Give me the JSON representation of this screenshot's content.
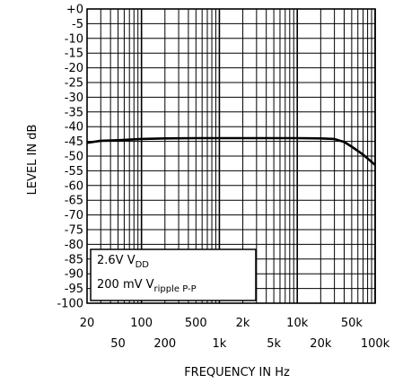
{
  "chart_data": {
    "type": "line",
    "xlabel": "FREQUENCY IN Hz",
    "ylabel": "LEVEL IN dB",
    "xscale": "log",
    "xlim": [
      20,
      100000
    ],
    "ylim": [
      -100,
      0
    ],
    "grid": true,
    "x_ticks_row1": [
      "20",
      "100",
      "500",
      "2k",
      "10k",
      "50k"
    ],
    "x_ticks_row2": [
      "50",
      "200",
      "1k",
      "5k",
      "20k",
      "100k"
    ],
    "y_ticks": [
      "+0",
      "-5",
      "-10",
      "-15",
      "-20",
      "-25",
      "-30",
      "-35",
      "-40",
      "-45",
      "-50",
      "-55",
      "-60",
      "-65",
      "-70",
      "-75",
      "-80",
      "-85",
      "-90",
      "-95",
      "-100"
    ],
    "annotation": {
      "line1_main": "2.6V V",
      "line1_sub": "DD",
      "line2_main": "200 mV V",
      "line2_sub": "ripple P-P"
    },
    "series": [
      {
        "x": [
          20,
          30,
          50,
          100,
          200,
          500,
          1000,
          2000,
          5000,
          10000,
          20000,
          30000,
          40000,
          50000,
          70000,
          100000
        ],
        "y": [
          -45.5,
          -44.8,
          -44.6,
          -44.2,
          -44.0,
          -43.9,
          -43.9,
          -43.9,
          -43.9,
          -43.9,
          -44.0,
          -44.2,
          -45.2,
          -46.8,
          -49.5,
          -53.0
        ]
      }
    ]
  }
}
